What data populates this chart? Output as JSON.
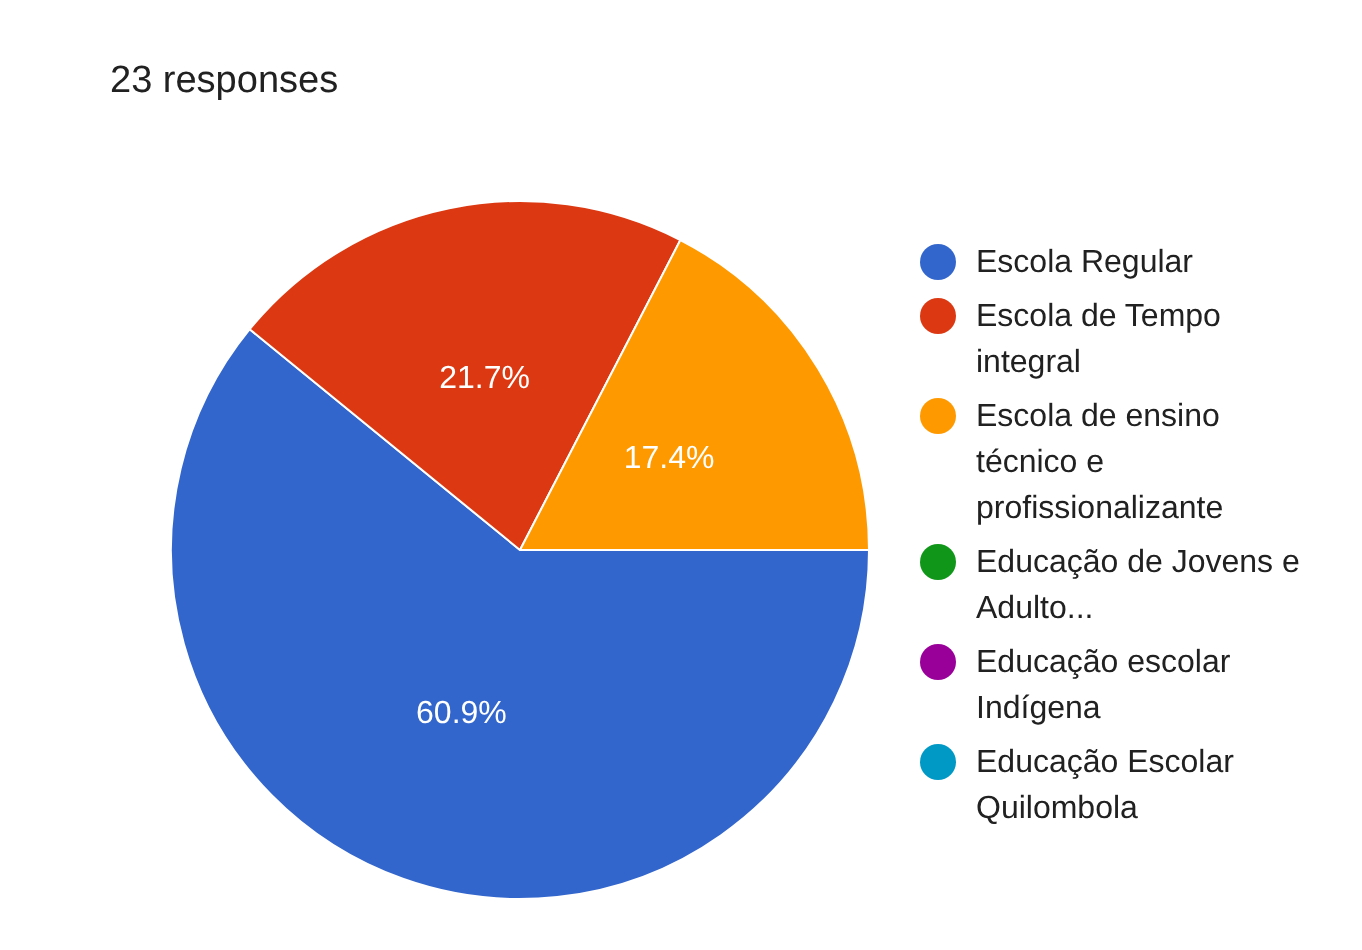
{
  "chart_data": {
    "type": "pie",
    "title": "23 responses",
    "categories": [
      "Escola Regular",
      "Escola de Tempo integral",
      "Escola de ensino técnico e profissionalizante",
      "Educação de Jovens e Adulto...",
      "Educação escolar Indígena",
      "Educação Escolar Quilombola"
    ],
    "values": [
      60.9,
      21.7,
      17.4,
      0,
      0,
      0
    ],
    "colors": [
      "#3366cc",
      "#dc3912",
      "#ff9900",
      "#109618",
      "#990099",
      "#0099c6"
    ],
    "value_labels": [
      "60.9%",
      "21.7%",
      "17.4%",
      null,
      null,
      null
    ],
    "legend": "right"
  }
}
